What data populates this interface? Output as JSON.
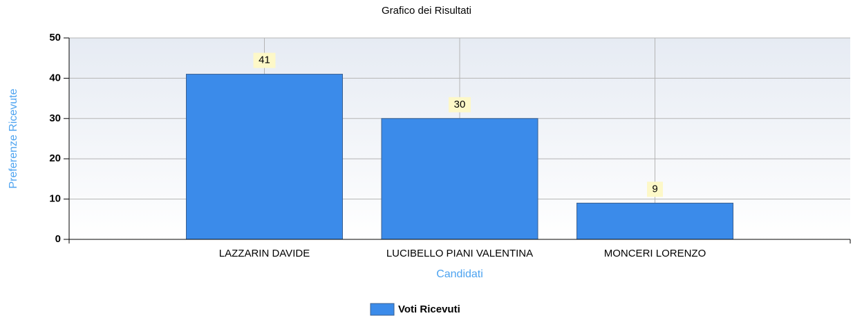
{
  "chart_data": {
    "type": "bar",
    "title": "Grafico dei Risultati",
    "xlabel": "Candidati",
    "ylabel": "Preferenze Ricevute",
    "categories": [
      "LAZZARIN DAVIDE",
      "LUCIBELLO PIANI VALENTINA",
      "MONCERI LORENZO"
    ],
    "series": [
      {
        "name": "Voti Ricevuti",
        "color": "#3b8bea",
        "values": [
          41,
          30,
          9
        ]
      }
    ],
    "ylim": [
      0,
      50
    ],
    "yticks": [
      0,
      10,
      20,
      30,
      40,
      50
    ],
    "grid": true,
    "legend": "bottom"
  }
}
